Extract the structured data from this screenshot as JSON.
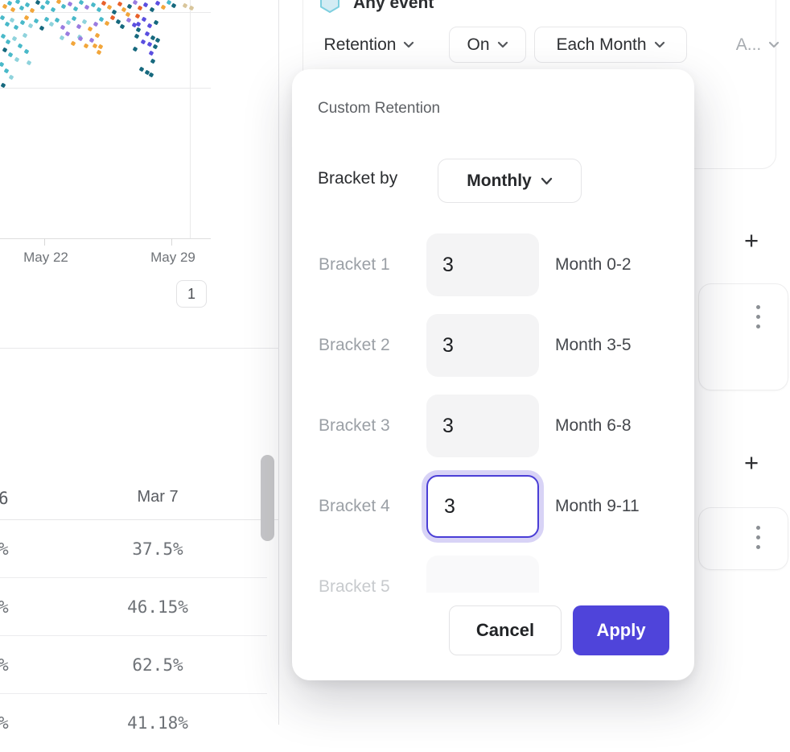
{
  "colors": {
    "accent": "#4f44da",
    "focus_border": "#4a3ed6",
    "focus_ring": "#d8d3f6",
    "scatter_palette": [
      "#49b9c9",
      "#8fd3dc",
      "#17697e",
      "#f2a63b",
      "#9a7ce0",
      "#5b4fe0",
      "#e8612b",
      "#d9c69c"
    ]
  },
  "left_panel": {
    "pagination_label": "1"
  },
  "chart_data": [
    {
      "type": "scatter",
      "x_tick_labels": [
        "May 22",
        "May 29"
      ],
      "points": [
        [
          6,
          8,
          3
        ],
        [
          12,
          4,
          0
        ],
        [
          16,
          12,
          3
        ],
        [
          22,
          2,
          0
        ],
        [
          27,
          10,
          0
        ],
        [
          34,
          6,
          0
        ],
        [
          40,
          13,
          3
        ],
        [
          47,
          3,
          2
        ],
        [
          53,
          9,
          0
        ],
        [
          59,
          3,
          0
        ],
        [
          66,
          12,
          0
        ],
        [
          73,
          2,
          3
        ],
        [
          79,
          8,
          0
        ],
        [
          87,
          5,
          4
        ],
        [
          94,
          11,
          0
        ],
        [
          101,
          3,
          0
        ],
        [
          108,
          9,
          4
        ],
        [
          116,
          6,
          0
        ],
        [
          123,
          12,
          0
        ],
        [
          129,
          4,
          6
        ],
        [
          136,
          9,
          3
        ],
        [
          142,
          15,
          2
        ],
        [
          149,
          5,
          6
        ],
        [
          154,
          12,
          3
        ],
        [
          161,
          8,
          2
        ],
        [
          168,
          3,
          4
        ],
        [
          174,
          10,
          6
        ],
        [
          181,
          6,
          5
        ],
        [
          189,
          12,
          2
        ],
        [
          196,
          4,
          5
        ],
        [
          203,
          9,
          3
        ],
        [
          210,
          3,
          0
        ],
        [
          216,
          7,
          2
        ],
        [
          230,
          7,
          7
        ],
        [
          238,
          10,
          7
        ],
        [
          3,
          22,
          0
        ],
        [
          9,
          30,
          0
        ],
        [
          15,
          25,
          1
        ],
        [
          20,
          34,
          0
        ],
        [
          28,
          28,
          0
        ],
        [
          33,
          22,
          3
        ],
        [
          38,
          32,
          1
        ],
        [
          45,
          26,
          0
        ],
        [
          52,
          35,
          2
        ],
        [
          58,
          24,
          0
        ],
        [
          64,
          30,
          1
        ],
        [
          71,
          25,
          0
        ],
        [
          78,
          34,
          4
        ],
        [
          85,
          28,
          1
        ],
        [
          92,
          23,
          0
        ],
        [
          98,
          33,
          4
        ],
        [
          105,
          27,
          1
        ],
        [
          112,
          36,
          3
        ],
        [
          119,
          30,
          4
        ],
        [
          126,
          24,
          0
        ],
        [
          133,
          29,
          3
        ],
        [
          140,
          22,
          6
        ],
        [
          147,
          27,
          2
        ],
        [
          152,
          33,
          2
        ],
        [
          160,
          25,
          4
        ],
        [
          167,
          31,
          5
        ],
        [
          172,
          37,
          2
        ],
        [
          179,
          24,
          5
        ],
        [
          186,
          32,
          5
        ],
        [
          194,
          28,
          2
        ],
        [
          171,
          20,
          6
        ],
        [
          159,
          18,
          3
        ],
        [
          4,
          45,
          0
        ],
        [
          10,
          52,
          0
        ],
        [
          18,
          48,
          1
        ],
        [
          25,
          57,
          0
        ],
        [
          31,
          44,
          1
        ],
        [
          6,
          62,
          2
        ],
        [
          13,
          68,
          0
        ],
        [
          21,
          74,
          1
        ],
        [
          33,
          64,
          0
        ],
        [
          77,
          47,
          1
        ],
        [
          84,
          42,
          4
        ],
        [
          91,
          54,
          3
        ],
        [
          99,
          46,
          1
        ],
        [
          107,
          57,
          3
        ],
        [
          114,
          50,
          4
        ],
        [
          121,
          44,
          3
        ],
        [
          125,
          58,
          3
        ],
        [
          100,
          48,
          4
        ],
        [
          170,
          45,
          2
        ],
        [
          183,
          42,
          5
        ],
        [
          190,
          47,
          2
        ],
        [
          186,
          55,
          5
        ],
        [
          193,
          58,
          2
        ],
        [
          188,
          66,
          5
        ],
        [
          196,
          50,
          2
        ],
        [
          178,
          52,
          5
        ],
        [
          168,
          61,
          2
        ],
        [
          172,
          30,
          5
        ],
        [
          2,
          80,
          0
        ],
        [
          8,
          88,
          0
        ],
        [
          14,
          96,
          1
        ],
        [
          4,
          106,
          2
        ],
        [
          36,
          78,
          1
        ],
        [
          118,
          57,
          3
        ],
        [
          123,
          65,
          3
        ],
        [
          190,
          76,
          2
        ],
        [
          176,
          86,
          2
        ],
        [
          183,
          90,
          2
        ],
        [
          188,
          93,
          2
        ]
      ]
    },
    {
      "type": "table",
      "header": [
        "6",
        "Mar 7"
      ],
      "rows": [
        {
          "left": "%",
          "value": "37.5%"
        },
        {
          "left": "%",
          "value": "46.15%"
        },
        {
          "left": "%",
          "value": "62.5%"
        },
        {
          "left": "%",
          "value": "41.18%"
        }
      ]
    }
  ],
  "query_card": {
    "event": "Any event",
    "controls": [
      {
        "label": "Retention"
      },
      {
        "label": "On"
      },
      {
        "label": "Each Month"
      },
      {
        "label": "A..."
      }
    ]
  },
  "right_rail": {
    "add_label": "+"
  },
  "modal": {
    "title": "Custom Retention",
    "bracket_by_label": "Bracket by",
    "bracket_by_value": "Monthly",
    "brackets": [
      {
        "label": "Bracket 1",
        "value": "3",
        "range": "Month 0-2",
        "focused": false,
        "clipped": false
      },
      {
        "label": "Bracket 2",
        "value": "3",
        "range": "Month 3-5",
        "focused": false,
        "clipped": false
      },
      {
        "label": "Bracket 3",
        "value": "3",
        "range": "Month 6-8",
        "focused": false,
        "clipped": false
      },
      {
        "label": "Bracket 4",
        "value": "3",
        "range": "Month 9-11",
        "focused": true,
        "clipped": false
      },
      {
        "label": "Bracket 5",
        "value": "",
        "range": "",
        "focused": false,
        "clipped": true
      }
    ],
    "cancel_label": "Cancel",
    "apply_label": "Apply"
  }
}
